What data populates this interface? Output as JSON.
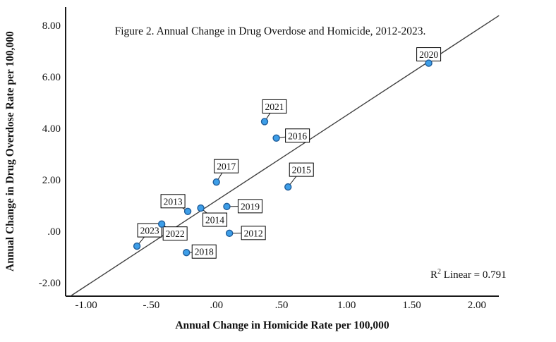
{
  "chart_data": {
    "type": "scatter",
    "title": "Figure 2. Annual Change in Drug Overdose and Homicide, 2012-2023.",
    "xlabel": "Annual Change in Homicide Rate per 100,000",
    "ylabel": "Annual Change in Drug Overdose Rate per 100,000",
    "xlim": [
      -1.16,
      2.17
    ],
    "ylim": [
      -2.49,
      8.74
    ],
    "grid": false,
    "x_ticks": [
      {
        "value": -1.0,
        "label": "-1.00"
      },
      {
        "value": -0.5,
        "label": "-.50"
      },
      {
        "value": 0.0,
        "label": ".00"
      },
      {
        "value": 0.5,
        "label": ".50"
      },
      {
        "value": 1.0,
        "label": "1.00"
      },
      {
        "value": 1.5,
        "label": "1.50"
      },
      {
        "value": 2.0,
        "label": "2.00"
      }
    ],
    "y_ticks": [
      {
        "value": 8.0,
        "label": "8.00"
      },
      {
        "value": 6.0,
        "label": "6.00"
      },
      {
        "value": 4.0,
        "label": "4.00"
      },
      {
        "value": 2.0,
        "label": "2.00"
      },
      {
        "value": 0.0,
        "label": ".00"
      },
      {
        "value": -2.0,
        "label": "-2.00"
      }
    ],
    "points": [
      {
        "year": "2012",
        "x": 0.1,
        "y": -0.05,
        "label_offset": [
          17,
          -10
        ]
      },
      {
        "year": "2013",
        "x": -0.22,
        "y": 0.8,
        "label_offset": [
          -38,
          -24
        ]
      },
      {
        "year": "2014",
        "x": -0.12,
        "y": 0.93,
        "label_offset": [
          3,
          7
        ]
      },
      {
        "year": "2015",
        "x": 0.55,
        "y": 1.75,
        "label_offset": [
          2,
          -34
        ]
      },
      {
        "year": "2016",
        "x": 0.46,
        "y": 3.65,
        "label_offset": [
          13,
          -13
        ]
      },
      {
        "year": "2017",
        "x": 0.0,
        "y": 1.94,
        "label_offset": [
          -3,
          -32
        ]
      },
      {
        "year": "2018",
        "x": -0.23,
        "y": -0.8,
        "label_offset": [
          8,
          -11
        ]
      },
      {
        "year": "2019",
        "x": 0.08,
        "y": 0.99,
        "label_offset": [
          16,
          -10
        ]
      },
      {
        "year": "2020",
        "x": 1.63,
        "y": 6.56,
        "label_offset": [
          -17,
          -22
        ]
      },
      {
        "year": "2021",
        "x": 0.37,
        "y": 4.29,
        "label_offset": [
          -3,
          -31
        ]
      },
      {
        "year": "2022",
        "x": -0.42,
        "y": 0.31,
        "label_offset": [
          2,
          4
        ]
      },
      {
        "year": "2023",
        "x": -0.61,
        "y": -0.55,
        "label_offset": [
          1,
          -32
        ]
      }
    ],
    "regression_line": {
      "x1": -1.12,
      "y1": -2.49,
      "x2": 2.17,
      "y2": 8.41
    },
    "annotation": {
      "r_prefix": "R",
      "r_sup": "2",
      "r_rest": " Linear = 0.791",
      "r2_value": 0.791
    },
    "colors": {
      "point_fill": "#3d9ee8",
      "point_stroke": "#1f5c99",
      "fit_line": "#404040",
      "axis": "#1a1a1a",
      "label_box_border": "#000000",
      "label_box_fill": "#ffffff"
    }
  }
}
